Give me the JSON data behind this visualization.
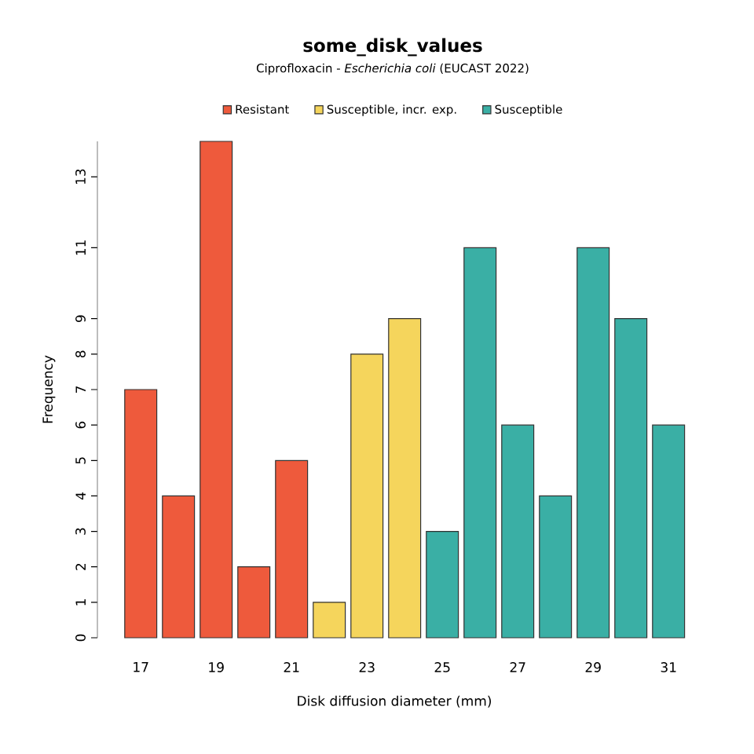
{
  "chart_data": {
    "type": "bar",
    "title": "some_disk_values",
    "subtitle": "Ciprofloxacin - *Escherichia coli* (EUCAST 2022)",
    "xlabel": "Disk diffusion diameter (mm)",
    "ylabel": "Frequency",
    "categories": [
      "17",
      null,
      "19",
      null,
      "21",
      null,
      "23",
      null,
      "25",
      null,
      "27",
      null,
      "29",
      null,
      "31"
    ],
    "series": [
      {
        "name": "Resistant",
        "color": "#ee5a3c",
        "values": [
          7,
          4,
          14,
          2,
          5,
          null,
          null,
          null,
          null,
          null,
          null,
          null,
          null,
          null,
          null
        ]
      },
      {
        "name": "Susceptible, incr. exp.",
        "color": "#f5d55c",
        "values": [
          null,
          null,
          null,
          null,
          null,
          1,
          8,
          9,
          null,
          null,
          null,
          null,
          null,
          null,
          null
        ]
      },
      {
        "name": "Susceptible",
        "color": "#3aafa5",
        "values": [
          null,
          null,
          null,
          null,
          null,
          null,
          null,
          null,
          3,
          11,
          6,
          4,
          11,
          9,
          6
        ]
      }
    ],
    "ylim": [
      0,
      14
    ],
    "yticks": [
      0,
      1,
      2,
      3,
      4,
      5,
      6,
      7,
      8,
      9,
      11,
      13
    ],
    "legend": "top"
  }
}
